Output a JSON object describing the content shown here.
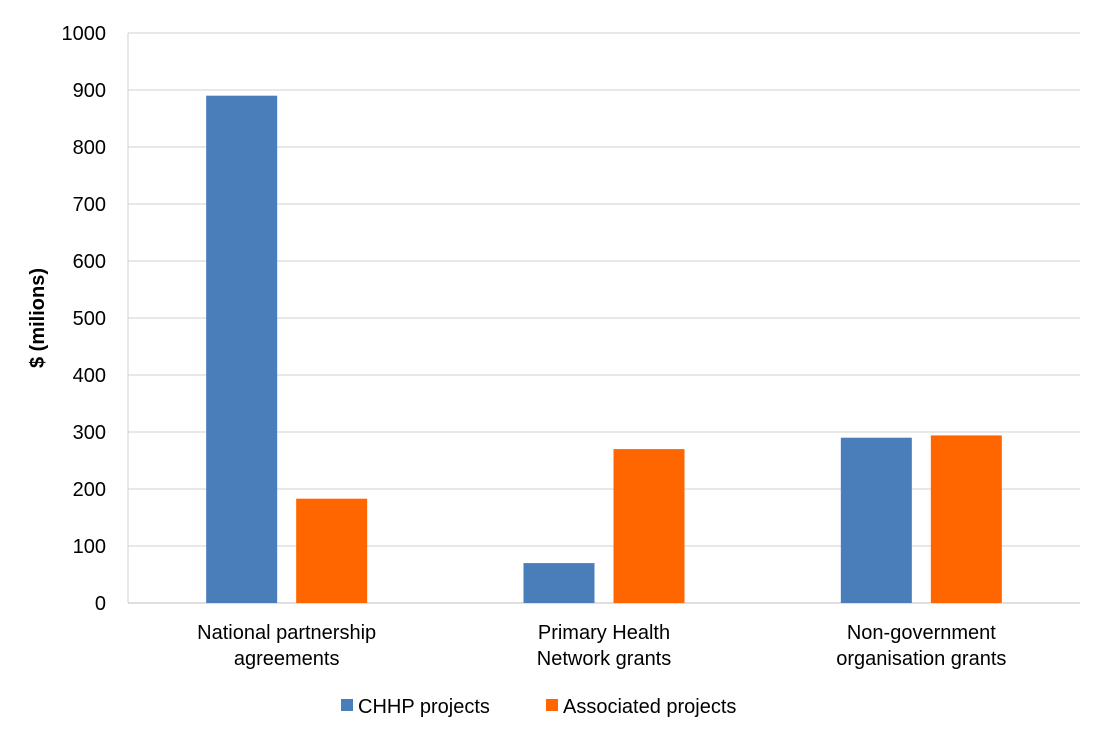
{
  "chart_data": {
    "type": "bar",
    "categories": [
      [
        "National partnership",
        "agreements"
      ],
      [
        "Primary Health",
        "Network grants"
      ],
      [
        "Non-government",
        "organisation grants"
      ]
    ],
    "series": [
      {
        "name": "CHHP projects",
        "color": "#4a7ebb",
        "values": [
          890,
          70,
          290
        ]
      },
      {
        "name": "Associated projects",
        "color": "#ff6600",
        "values": [
          183,
          270,
          294
        ]
      }
    ],
    "title": "",
    "xlabel": "",
    "ylabel": "$ (milions)",
    "ylim": [
      0,
      1000
    ],
    "yticks": [
      0,
      100,
      200,
      300,
      400,
      500,
      600,
      700,
      800,
      900,
      1000
    ],
    "grid": true,
    "legend_position": "bottom"
  }
}
